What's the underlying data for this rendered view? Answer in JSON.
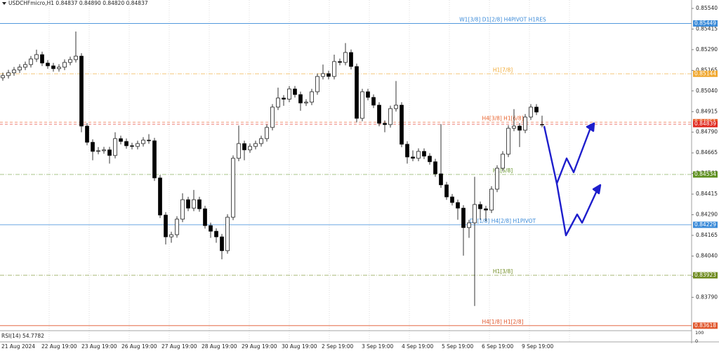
{
  "chart_data": {
    "type": "candlestick",
    "header": "USDCHFmicro,H1  0.84837 0.84890 0.84820 0.84837",
    "indicator": "RSI(14) 54.7782",
    "rsi_ylim": [
      0,
      100
    ],
    "rsi_yticks": [
      100,
      0
    ],
    "candle_color": "#000000",
    "x_labels": [
      "21 Aug 2024",
      "22 Aug 19:00",
      "23 Aug 19:00",
      "26 Aug 19:00",
      "27 Aug 19:00",
      "28 Aug 19:00",
      "29 Aug 19:00",
      "30 Aug 19:00",
      "2 Sep 19:00",
      "3 Sep 19:00",
      "4 Sep 19:00",
      "5 Sep 19:00",
      "6 Sep 19:00",
      "9 Sep 19:00"
    ],
    "open": [
      0.8512,
      0.85133,
      0.8515,
      0.85167,
      0.85184,
      0.852,
      0.85234,
      0.8526,
      0.85209,
      0.85192,
      0.85175,
      0.85184,
      0.85213,
      0.8523,
      0.85251,
      0.84827,
      0.84729,
      0.84674,
      0.84678,
      0.84683,
      0.84649,
      0.84751,
      0.84734,
      0.84708,
      0.84704,
      0.84721,
      0.84742,
      0.84738,
      0.84513,
      0.84288,
      0.84156,
      0.84169,
      0.84263,
      0.84381,
      0.8433,
      0.84381,
      0.84326,
      0.84224,
      0.8419,
      0.84156,
      0.84072,
      0.84275,
      0.84632,
      0.84721,
      0.84683,
      0.84704,
      0.84721,
      0.84751,
      0.84819,
      0.84942,
      0.84997,
      0.8499,
      0.85052,
      0.85018,
      0.84967,
      0.84972,
      0.85035,
      0.85128,
      0.85145,
      0.85128,
      0.85218,
      0.85213,
      0.85273,
      0.85188,
      0.84874,
      0.85035,
      0.85001,
      0.84954,
      0.84844,
      0.84836,
      0.84933,
      0.84954,
      0.84717,
      0.8464,
      0.84632,
      0.84674,
      0.84645,
      0.84611,
      0.84538,
      0.84471,
      0.84398,
      0.84364,
      0.8433,
      0.84212,
      0.84241,
      0.84352,
      0.84326,
      0.84318,
      0.84445,
      0.84572,
      0.84657,
      0.84814,
      0.84827,
      0.84802,
      0.84882,
      0.84942,
      0.84837
    ],
    "high": [
      0.85151,
      0.85168,
      0.85185,
      0.85202,
      0.85218,
      0.85252,
      0.8529,
      0.85278,
      0.85227,
      0.8521,
      0.85202,
      0.85231,
      0.85248,
      0.854,
      0.85269,
      0.84845,
      0.84747,
      0.847,
      0.84701,
      0.84701,
      0.8479,
      0.84769,
      0.84752,
      0.84726,
      0.84739,
      0.8476,
      0.84778,
      0.84756,
      0.84531,
      0.84306,
      0.84187,
      0.84281,
      0.8442,
      0.84399,
      0.8444,
      0.84399,
      0.84344,
      0.84242,
      0.84208,
      0.84174,
      0.84293,
      0.8465,
      0.8483,
      0.84739,
      0.84722,
      0.84739,
      0.84769,
      0.84837,
      0.8496,
      0.8506,
      0.85015,
      0.8507,
      0.8507,
      0.85036,
      0.8499,
      0.85053,
      0.85146,
      0.852,
      0.85163,
      0.8526,
      0.85236,
      0.8533,
      0.85291,
      0.85206,
      0.85053,
      0.85053,
      0.85019,
      0.84972,
      0.84862,
      0.84951,
      0.851,
      0.84972,
      0.84735,
      0.8468,
      0.84692,
      0.84692,
      0.84663,
      0.84629,
      0.84839,
      0.84489,
      0.84416,
      0.84382,
      0.84348,
      0.84259,
      0.8452,
      0.8437,
      0.84344,
      0.84463,
      0.8459,
      0.84675,
      0.84832,
      0.8493,
      0.84845,
      0.849,
      0.8496,
      0.8496,
      0.8489
    ],
    "low": [
      0.85102,
      0.85115,
      0.85132,
      0.85149,
      0.85166,
      0.85182,
      0.85216,
      0.85191,
      0.85174,
      0.85157,
      0.85157,
      0.85166,
      0.85195,
      0.85212,
      0.8479,
      0.84711,
      0.8462,
      0.84656,
      0.8466,
      0.846,
      0.84631,
      0.84716,
      0.8469,
      0.84686,
      0.84686,
      0.84703,
      0.8472,
      0.84495,
      0.8427,
      0.8411,
      0.8412,
      0.84151,
      0.84245,
      0.84312,
      0.84312,
      0.84308,
      0.84206,
      0.8415,
      0.8412,
      0.8402,
      0.84054,
      0.84257,
      0.84614,
      0.8462,
      0.84665,
      0.84686,
      0.84703,
      0.84733,
      0.84801,
      0.84924,
      0.8495,
      0.84972,
      0.85,
      0.8492,
      0.84949,
      0.84954,
      0.85017,
      0.8511,
      0.8511,
      0.8511,
      0.85195,
      0.85195,
      0.8517,
      0.8485,
      0.84856,
      0.84983,
      0.84936,
      0.84826,
      0.8479,
      0.84818,
      0.84915,
      0.84699,
      0.846,
      0.84614,
      0.84614,
      0.84627,
      0.84593,
      0.8452,
      0.84453,
      0.8438,
      0.84346,
      0.8426,
      0.84042,
      0.8415,
      0.83737,
      0.8426,
      0.8425,
      0.843,
      0.84427,
      0.84554,
      0.84639,
      0.84796,
      0.847,
      0.84784,
      0.84864,
      0.84894,
      0.8482
    ],
    "close": [
      0.85133,
      0.8515,
      0.85167,
      0.85184,
      0.852,
      0.85234,
      0.8526,
      0.85209,
      0.85192,
      0.85175,
      0.85184,
      0.85213,
      0.8523,
      0.85251,
      0.84827,
      0.84729,
      0.84674,
      0.84678,
      0.84683,
      0.84649,
      0.84751,
      0.84734,
      0.84708,
      0.84704,
      0.84721,
      0.84742,
      0.84738,
      0.84513,
      0.84288,
      0.84156,
      0.84169,
      0.84263,
      0.84381,
      0.8433,
      0.84381,
      0.84326,
      0.84224,
      0.8419,
      0.84156,
      0.84072,
      0.84275,
      0.84632,
      0.84721,
      0.84683,
      0.84704,
      0.84721,
      0.84751,
      0.84819,
      0.84942,
      0.84997,
      0.8499,
      0.85052,
      0.85018,
      0.84967,
      0.84972,
      0.85035,
      0.85128,
      0.85145,
      0.85128,
      0.85218,
      0.85213,
      0.85273,
      0.85188,
      0.84874,
      0.85035,
      0.85001,
      0.84954,
      0.84844,
      0.84836,
      0.84933,
      0.84954,
      0.84717,
      0.8464,
      0.84632,
      0.84674,
      0.84645,
      0.84611,
      0.84538,
      0.84471,
      0.84398,
      0.84364,
      0.8433,
      0.84212,
      0.84241,
      0.84352,
      0.84326,
      0.84318,
      0.84445,
      0.84572,
      0.84657,
      0.84814,
      0.84827,
      0.84802,
      0.84882,
      0.84942,
      0.84912,
      0.84837
    ],
    "ylim": [
      0.83596,
      0.85591
    ],
    "yticks": [
      {
        "value": 0.8554,
        "label": "0.85540"
      },
      0.85415,
      {
        "value": 0.8529,
        "label": "0.85290"
      },
      0.85165,
      {
        "value": 0.8504,
        "label": "0.85040"
      },
      0.84915,
      {
        "value": 0.8479,
        "label": "0.84790"
      },
      0.84665,
      {
        "value": 0.8454,
        "label": "0.84540"
      },
      0.84415,
      {
        "value": 0.8429,
        "label": "0.84290"
      },
      0.84165,
      {
        "value": 0.8404,
        "label": "0.84040"
      },
      0.83915,
      {
        "value": 0.8379,
        "label": "0.83790"
      }
    ],
    "levels": [
      {
        "value": 0.85449,
        "label": "W1[3/8] D1[2/8] H4PIVOT H1RES",
        "color": "#3a8ad8",
        "style": "solid"
      },
      {
        "value": 0.85144,
        "label": "H1[7/8]",
        "color": "#f0a830",
        "style": "dashdot"
      },
      {
        "value": 0.84851,
        "label": "H4[3/8] H1[6/8]",
        "color": "#e8602a",
        "style": "dashed"
      },
      {
        "value": 0.84839,
        "color": "#e02a20",
        "style": "dashed"
      },
      {
        "value": 0.84534,
        "label": "H1[5/8]",
        "color": "#5e9020",
        "style": "dashdot"
      },
      {
        "value": 0.84229,
        "label": "D1[1/8] H4[2/8] H1PIVOT",
        "color": "#3a8ad8",
        "style": "solid"
      },
      {
        "value": 0.83923,
        "label": "H1[3/8]",
        "color": "#6e8a1e",
        "style": "dashdot"
      },
      {
        "value": 0.83618,
        "label": "H4[1/8] H1[2/8]",
        "color": "#e0552a",
        "style": "solid"
      }
    ]
  }
}
